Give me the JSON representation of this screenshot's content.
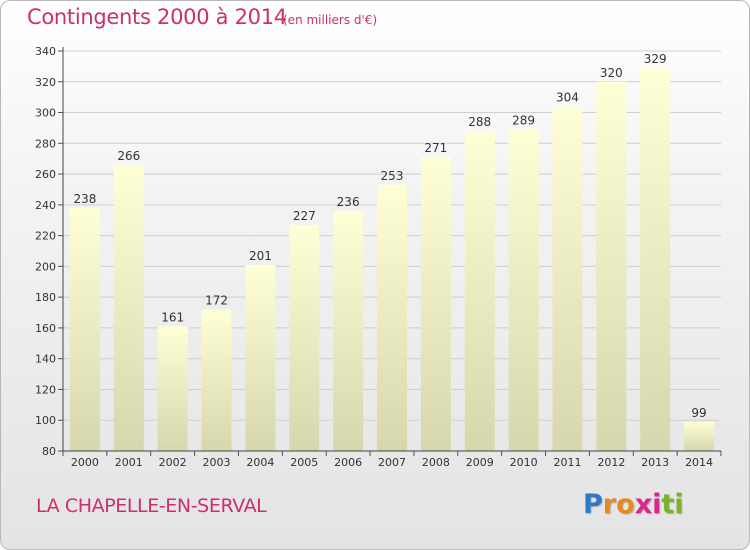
{
  "title": {
    "main": "Contingents 2000 à 2014",
    "unit": "(en milliers d'€)"
  },
  "commune": "LA CHAPELLE-EN-SERVAL",
  "logo": {
    "letters": [
      "P",
      "r",
      "o",
      "x",
      "i",
      "t",
      "i"
    ],
    "colors": [
      "#2e78c8",
      "#e8891e",
      "#e8891e",
      "#d62a8a",
      "#d62a8a",
      "#7ab32e",
      "#7ab32e"
    ]
  },
  "colors": {
    "title": "#cc2f6e",
    "bar_top": "#ffffd6",
    "bar_bottom": "#d7d7ad",
    "grid": "#cfcfcf"
  },
  "chart_data": {
    "type": "bar",
    "title": "Contingents 2000 à 2014",
    "subtitle": "(en milliers d'€)",
    "xlabel": "",
    "ylabel": "",
    "categories": [
      "2000",
      "2001",
      "2002",
      "2003",
      "2004",
      "2005",
      "2006",
      "2007",
      "2008",
      "2009",
      "2010",
      "2011",
      "2012",
      "2013",
      "2014"
    ],
    "values": [
      238,
      266,
      161,
      172,
      201,
      227,
      236,
      253,
      271,
      288,
      289,
      304,
      320,
      329,
      99
    ],
    "ylim": [
      80,
      340
    ],
    "yticks": [
      80,
      100,
      120,
      140,
      160,
      180,
      200,
      220,
      240,
      260,
      280,
      300,
      320,
      340
    ],
    "grid": true,
    "legend": "none"
  }
}
